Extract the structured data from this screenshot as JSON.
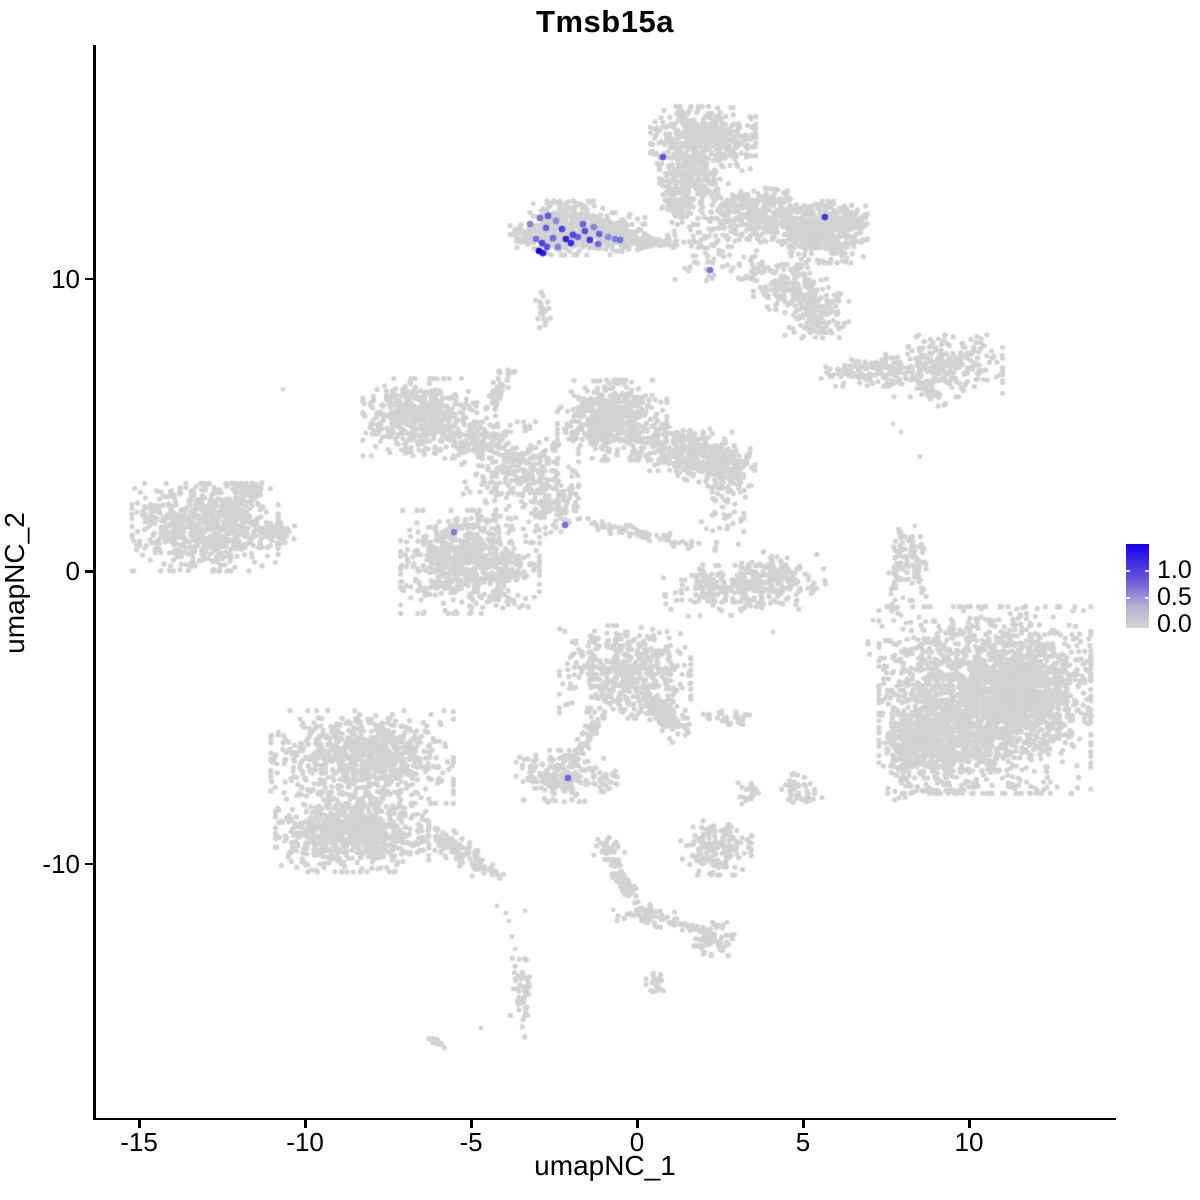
{
  "chart_data": {
    "type": "scatter",
    "title": "Tmsb15a",
    "gene": "Tmsb15a",
    "xlabel": "umapNC_1",
    "ylabel": "umapNC_2",
    "x_ticks": [
      -15,
      -10,
      -5,
      0,
      5,
      10
    ],
    "y_ticks": [
      10,
      0,
      -10
    ],
    "x_range": [
      -16.3,
      14.4
    ],
    "y_range": [
      -18.7,
      18.0
    ],
    "grid": false,
    "point_color_zero": "#d2d2d2",
    "point_color_max": "#0d00e8",
    "value_max": 1.3,
    "legend": {
      "position": "right",
      "labels": [
        "1.0",
        "0.5",
        "0.0"
      ],
      "values": [
        1.0,
        0.5,
        0.0
      ]
    },
    "clusters": [
      {
        "name": "tmsb15a-pos-cluster-core",
        "x": -2.17,
        "y": 11.73,
        "sx": 0.62,
        "sy": 0.42,
        "rot": 0,
        "n": 420
      },
      {
        "name": "tmsb15a-pos-cluster-right",
        "x": -0.75,
        "y": 11.59,
        "sx": 0.45,
        "sy": 0.3,
        "rot": 0,
        "n": 150
      },
      {
        "name": "tmsb15a-pos-cluster-tail",
        "x": -0.21,
        "y": 11.28,
        "sx": 0.4,
        "sy": 0.13,
        "rot": 0,
        "n": 60
      },
      {
        "name": "tmsb15a-pos-cluster-lefttip",
        "x": -3.43,
        "y": 11.42,
        "sx": 0.22,
        "sy": 0.18,
        "rot": 0,
        "n": 40
      },
      {
        "name": "stalk-below-pos-cluster",
        "x": -2.83,
        "y": 8.99,
        "sx": 0.1,
        "sy": 0.4,
        "rot": 0,
        "n": 22
      },
      {
        "name": "bridge-to-topright",
        "x": 0.75,
        "y": 11.25,
        "sx": 0.4,
        "sy": 0.12,
        "rot": 0,
        "n": 40
      },
      {
        "name": "topright-head",
        "x": 1.99,
        "y": 14.74,
        "sx": 0.72,
        "sy": 0.52,
        "rot": 0,
        "n": 520
      },
      {
        "name": "topright-head-lower",
        "x": 1.6,
        "y": 13.37,
        "sx": 0.42,
        "sy": 0.42,
        "rot": 0,
        "n": 220
      },
      {
        "name": "topright-stalk",
        "x": 1.23,
        "y": 12.51,
        "sx": 0.22,
        "sy": 0.3,
        "rot": 0,
        "n": 70
      },
      {
        "name": "topright-sparse-mid",
        "x": 2.2,
        "y": 11.21,
        "sx": 0.55,
        "sy": 0.62,
        "rot": 0,
        "n": 80
      },
      {
        "name": "topright-band-left",
        "x": 3.77,
        "y": 12.17,
        "sx": 0.85,
        "sy": 0.42,
        "rot": -8,
        "n": 420
      },
      {
        "name": "topright-band-right",
        "x": 5.57,
        "y": 11.59,
        "sx": 0.62,
        "sy": 0.48,
        "rot": 0,
        "n": 380
      },
      {
        "name": "topright-band-tip",
        "x": 6.42,
        "y": 11.93,
        "sx": 0.22,
        "sy": 0.25,
        "rot": 0,
        "n": 60
      },
      {
        "name": "topright-lower-lobe1",
        "x": 4.61,
        "y": 9.71,
        "sx": 0.5,
        "sy": 0.35,
        "rot": 0,
        "n": 140
      },
      {
        "name": "topright-lower-lobe2",
        "x": 5.39,
        "y": 8.85,
        "sx": 0.45,
        "sy": 0.4,
        "rot": 0,
        "n": 170
      },
      {
        "name": "topright-lower-sparse",
        "x": 3.55,
        "y": 10.29,
        "sx": 0.35,
        "sy": 0.3,
        "rot": 0,
        "n": 40
      },
      {
        "name": "middle-topleft-lobe",
        "x": -6.54,
        "y": 5.26,
        "sx": 0.78,
        "sy": 0.6,
        "rot": 0,
        "n": 500
      },
      {
        "name": "middle-topleft-arm",
        "x": -4.97,
        "y": 4.58,
        "sx": 0.5,
        "sy": 0.33,
        "rot": 0,
        "n": 140
      },
      {
        "name": "middle-top-streak",
        "x": -4.22,
        "y": 6.12,
        "sx": 0.45,
        "sy": 0.11,
        "rot": 65,
        "n": 55
      },
      {
        "name": "middle-upper-lobe",
        "x": -0.75,
        "y": 5.16,
        "sx": 0.75,
        "sy": 0.62,
        "rot": 0,
        "n": 520
      },
      {
        "name": "middle-right-arm",
        "x": 1.6,
        "y": 4.03,
        "sx": 0.8,
        "sy": 0.42,
        "rot": -10,
        "n": 330
      },
      {
        "name": "middle-right-arm-end",
        "x": 2.68,
        "y": 3.52,
        "sx": 0.4,
        "sy": 0.4,
        "rot": 0,
        "n": 140
      },
      {
        "name": "middle-central-sparse",
        "x": -3.52,
        "y": 3.45,
        "sx": 0.8,
        "sy": 0.75,
        "rot": 0,
        "n": 300
      },
      {
        "name": "middle-bridge-down",
        "x": -2.47,
        "y": 2.26,
        "sx": 0.45,
        "sy": 0.45,
        "rot": 0,
        "n": 120
      },
      {
        "name": "middle-lowerleft-lobe",
        "x": -5.03,
        "y": 0.31,
        "sx": 0.95,
        "sy": 0.8,
        "rot": 0,
        "n": 750
      },
      {
        "name": "middle-thin-tail",
        "x": 0.0,
        "y": 1.3,
        "sx": 1.1,
        "sy": 0.09,
        "rot": -13,
        "n": 70
      },
      {
        "name": "left-cluster-main",
        "x": -13.01,
        "y": 1.5,
        "sx": 1.0,
        "sy": 0.68,
        "rot": 0,
        "n": 780
      },
      {
        "name": "left-cluster-arm",
        "x": -11.75,
        "y": 2.56,
        "sx": 0.45,
        "sy": 0.18,
        "rot": 35,
        "n": 70
      },
      {
        "name": "left-cluster-tip",
        "x": -10.87,
        "y": 1.3,
        "sx": 0.3,
        "sy": 0.18,
        "rot": 0,
        "n": 50
      },
      {
        "name": "centerright-speckles",
        "x": 2.71,
        "y": 2.02,
        "sx": 0.35,
        "sy": 0.5,
        "rot": 0,
        "n": 35
      },
      {
        "name": "centerright-crescent",
        "x": 3.25,
        "y": -0.55,
        "sx": 1.1,
        "sy": 0.42,
        "rot": 5,
        "n": 260
      },
      {
        "name": "centerright-knob",
        "x": 2.11,
        "y": -0.41,
        "sx": 0.18,
        "sy": 0.28,
        "rot": 0,
        "n": 50
      },
      {
        "name": "centerright-lobe",
        "x": 4.19,
        "y": 0.03,
        "sx": 0.33,
        "sy": 0.33,
        "rot": 0,
        "n": 80
      },
      {
        "name": "right-thin-curve",
        "x": 7.86,
        "y": 0.31,
        "sx": 0.1,
        "sy": 0.95,
        "rot": -8,
        "n": 55
      },
      {
        "name": "right-thin-blobs",
        "x": 8.4,
        "y": 0.31,
        "sx": 0.14,
        "sy": 0.6,
        "rot": 0,
        "n": 55
      },
      {
        "name": "righttop-streak",
        "x": 7.26,
        "y": 6.8,
        "sx": 0.78,
        "sy": 0.22,
        "rot": 0,
        "n": 130
      },
      {
        "name": "righttop-blob",
        "x": 9.25,
        "y": 7.01,
        "sx": 0.8,
        "sy": 0.48,
        "rot": 0,
        "n": 260
      },
      {
        "name": "righttop-diag",
        "x": 8.82,
        "y": 6.12,
        "sx": 0.28,
        "sy": 0.1,
        "rot": -40,
        "n": 25
      },
      {
        "name": "bottomright-main",
        "x": 10.48,
        "y": -4.41,
        "sx": 1.45,
        "sy": 1.45,
        "rot": 0,
        "n": 2000
      },
      {
        "name": "bottomright-bulge",
        "x": 11.84,
        "y": -4.0,
        "sx": 0.75,
        "sy": 0.85,
        "rot": 0,
        "n": 500
      },
      {
        "name": "bottomright-lowerleft",
        "x": 9.13,
        "y": -5.85,
        "sx": 0.65,
        "sy": 0.75,
        "rot": 0,
        "n": 420
      },
      {
        "name": "bottomright-left-arm",
        "x": 8.1,
        "y": -5.95,
        "sx": 0.26,
        "sy": 0.85,
        "rot": 0,
        "n": 180
      },
      {
        "name": "bottomright-top-sparse",
        "x": 8.28,
        "y": -3.11,
        "sx": 0.6,
        "sy": 0.6,
        "rot": 0,
        "n": 50
      },
      {
        "name": "centerbottom-main",
        "x": -0.36,
        "y": -3.45,
        "sx": 0.9,
        "sy": 0.72,
        "rot": 0,
        "n": 520
      },
      {
        "name": "centerbottom-diag-arm",
        "x": 0.75,
        "y": -4.82,
        "sx": 0.48,
        "sy": 0.22,
        "rot": -50,
        "n": 130
      },
      {
        "name": "centerbottom-stalk",
        "x": -1.48,
        "y": -5.68,
        "sx": 0.45,
        "sy": 0.11,
        "rot": 62,
        "n": 55
      },
      {
        "name": "centerbottom-lower-blob",
        "x": -2.32,
        "y": -7.01,
        "sx": 0.6,
        "sy": 0.4,
        "rot": 0,
        "n": 200
      },
      {
        "name": "centerbottom-right-bits",
        "x": -0.93,
        "y": -7.15,
        "sx": 0.28,
        "sy": 0.18,
        "rot": 0,
        "n": 25
      },
      {
        "name": "centerbottom-hstreak",
        "x": 2.74,
        "y": -5.03,
        "sx": 0.5,
        "sy": 0.11,
        "rot": 0,
        "n": 30
      },
      {
        "name": "small-blob-a",
        "x": 3.4,
        "y": -7.52,
        "sx": 0.16,
        "sy": 0.26,
        "rot": 0,
        "n": 22
      },
      {
        "name": "small-blob-b",
        "x": 4.91,
        "y": -7.49,
        "sx": 0.3,
        "sy": 0.26,
        "rot": 0,
        "n": 45
      },
      {
        "name": "bottomleft-top",
        "x": -8.28,
        "y": -6.36,
        "sx": 1.25,
        "sy": 0.72,
        "rot": 0,
        "n": 850
      },
      {
        "name": "bottomleft-bottom",
        "x": -8.58,
        "y": -8.92,
        "sx": 1.05,
        "sy": 0.62,
        "rot": 0,
        "n": 800
      },
      {
        "name": "bottomleft-tail",
        "x": -5.39,
        "y": -9.54,
        "sx": 0.72,
        "sy": 0.2,
        "rot": -38,
        "n": 140
      },
      {
        "name": "bottomleft-trail-blob",
        "x": -3.46,
        "y": -14.39,
        "sx": 0.16,
        "sy": 0.7,
        "rot": 0,
        "n": 45
      },
      {
        "name": "bottomleft-bottom-diag",
        "x": -6.02,
        "y": -16.14,
        "sx": 0.18,
        "sy": 0.07,
        "rot": -35,
        "n": 12
      },
      {
        "name": "bottomstreak-knob",
        "x": -0.84,
        "y": -9.47,
        "sx": 0.22,
        "sy": 0.18,
        "rot": 0,
        "n": 35
      },
      {
        "name": "bottomstreak-diag",
        "x": -0.39,
        "y": -10.6,
        "sx": 0.42,
        "sy": 0.11,
        "rot": -64,
        "n": 65
      },
      {
        "name": "bottomstreak-thick",
        "x": 0.33,
        "y": -11.76,
        "sx": 0.4,
        "sy": 0.16,
        "rot": -10,
        "n": 60
      },
      {
        "name": "bottomstreak-arm",
        "x": 1.54,
        "y": -12.17,
        "sx": 0.28,
        "sy": 0.09,
        "rot": -15,
        "n": 25
      },
      {
        "name": "bottomstreak-end-blob",
        "x": 2.26,
        "y": -12.58,
        "sx": 0.3,
        "sy": 0.26,
        "rot": 0,
        "n": 70
      },
      {
        "name": "bottomstreak-small",
        "x": 0.6,
        "y": -13.98,
        "sx": 0.15,
        "sy": 0.22,
        "rot": 0,
        "n": 20
      },
      {
        "name": "small-cluster-bottom-mid",
        "x": 2.35,
        "y": -9.47,
        "sx": 0.5,
        "sy": 0.42,
        "rot": 0,
        "n": 170
      }
    ],
    "singleton_points": [
      [
        -10.66,
        6.22
      ],
      [
        7.11,
        -1.68
      ],
      [
        -4.22,
        -11.45
      ],
      [
        -3.95,
        -11.69
      ],
      [
        -3.86,
        -11.97
      ],
      [
        -3.77,
        -12.51
      ],
      [
        -3.67,
        -12.92
      ],
      [
        -3.37,
        -11.62
      ],
      [
        -4.7,
        -15.62
      ],
      [
        -0.72,
        -11.59
      ],
      [
        7.71,
        5.03
      ],
      [
        7.95,
        4.75
      ],
      [
        8.01,
        -0.92
      ],
      [
        8.1,
        -1.78
      ],
      [
        8.52,
        3.9
      ],
      [
        4.1,
        -2.09
      ],
      [
        3.4,
        -4.92
      ],
      [
        8.37,
        1.54
      ],
      [
        9.67,
        -2.15
      ]
    ],
    "expressing_points": [
      [
        -2.92,
        12.07,
        0.6
      ],
      [
        -2.68,
        12.14,
        0.75
      ],
      [
        -2.74,
        11.73,
        0.7
      ],
      [
        -2.44,
        11.97,
        0.45
      ],
      [
        -3.04,
        11.35,
        0.6
      ],
      [
        -2.86,
        11.21,
        0.9
      ],
      [
        -2.53,
        11.38,
        0.65
      ],
      [
        -2.14,
        11.35,
        1.1
      ],
      [
        -1.99,
        11.21,
        1.0
      ],
      [
        -1.63,
        11.86,
        0.7
      ],
      [
        -1.57,
        11.62,
        0.8
      ],
      [
        -1.3,
        11.76,
        0.5
      ],
      [
        -1.14,
        11.52,
        0.7
      ],
      [
        -0.87,
        11.42,
        0.45
      ],
      [
        -0.66,
        11.35,
        0.55
      ],
      [
        -1.17,
        11.18,
        0.65
      ],
      [
        -2.95,
        10.94,
        1.3
      ],
      [
        -2.83,
        10.87,
        1.1
      ],
      [
        -2.71,
        11.08,
        0.8
      ],
      [
        -2.38,
        11.08,
        0.5
      ],
      [
        -1.93,
        11.49,
        0.85
      ],
      [
        -1.78,
        11.42,
        0.7
      ],
      [
        -3.22,
        11.86,
        0.5
      ],
      [
        -2.26,
        11.69,
        0.9
      ],
      [
        -1.42,
        11.32,
        0.95
      ],
      [
        -0.51,
        11.32,
        0.6
      ],
      [
        0.78,
        14.15,
        0.8
      ],
      [
        5.66,
        12.1,
        0.95
      ],
      [
        2.2,
        10.29,
        0.6
      ],
      [
        -5.51,
        1.33,
        0.55
      ],
      [
        -2.17,
        1.57,
        0.6
      ],
      [
        -2.08,
        -7.08,
        0.65
      ]
    ]
  }
}
